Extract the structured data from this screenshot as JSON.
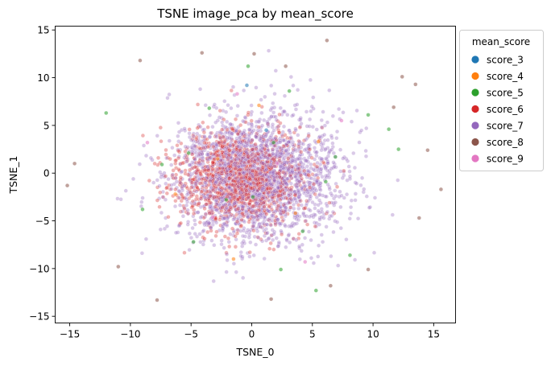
{
  "chart_data": {
    "type": "scatter",
    "title": "TSNE image_pca by mean_score",
    "xlabel": "TSNE_0",
    "ylabel": "TSNE_1",
    "xlim": [
      -16.2,
      16.8
    ],
    "ylim": [
      -15.7,
      15.4
    ],
    "xticks": [
      -15,
      -10,
      -5,
      0,
      5,
      10,
      15
    ],
    "yticks": [
      -15,
      -10,
      -5,
      0,
      5,
      10,
      15
    ],
    "grid": false,
    "legend": {
      "title": "mean_score",
      "placement": "outside-right-top",
      "entries": [
        {
          "name": "score_3",
          "color": "#1f77b4"
        },
        {
          "name": "score_4",
          "color": "#ff7f0e"
        },
        {
          "name": "score_5",
          "color": "#2ca02c"
        },
        {
          "name": "score_6",
          "color": "#d62728"
        },
        {
          "name": "score_7",
          "color": "#9467bd"
        },
        {
          "name": "score_8",
          "color": "#8c564b"
        },
        {
          "name": "score_9",
          "color": "#e377c2"
        }
      ]
    },
    "series": [
      {
        "name": "score_3",
        "color": "#1f77b4",
        "points": [
          [
            1.2,
            4.5
          ],
          [
            -0.4,
            9.2
          ]
        ]
      },
      {
        "name": "score_4",
        "color": "#ff7f0e",
        "points": [
          [
            -2.8,
            1.5
          ],
          [
            3.6,
            -4.2
          ],
          [
            0.6,
            7.1
          ],
          [
            -6.3,
            -2.2
          ],
          [
            5.5,
            3.3
          ],
          [
            -1.5,
            -9.0
          ]
        ]
      },
      {
        "name": "score_5",
        "color": "#2ca02c",
        "points": [
          [
            -12.0,
            6.3
          ],
          [
            -5.2,
            2.1
          ],
          [
            -2.1,
            -2.8
          ],
          [
            0.1,
            -2.5
          ],
          [
            1.8,
            3.2
          ],
          [
            4.2,
            -6.1
          ],
          [
            6.9,
            1.7
          ],
          [
            11.3,
            4.6
          ],
          [
            12.1,
            2.5
          ],
          [
            -9.0,
            -3.8
          ],
          [
            3.1,
            8.6
          ],
          [
            -3.5,
            6.8
          ],
          [
            8.1,
            -8.6
          ],
          [
            5.3,
            -12.3
          ],
          [
            -0.3,
            11.2
          ],
          [
            -7.4,
            0.9
          ],
          [
            9.6,
            6.1
          ],
          [
            2.4,
            -10.1
          ],
          [
            -4.8,
            -7.2
          ],
          [
            6.1,
            -0.9
          ]
        ]
      },
      {
        "name": "score_6",
        "color": "#d62728",
        "points": [],
        "seed": 17,
        "count": 1200,
        "center": [
          -1.0,
          -0.5
        ],
        "spread": [
          4.2,
          4.0
        ]
      },
      {
        "name": "score_7",
        "color": "#9467bd",
        "points": [],
        "seed": 29,
        "count": 2300,
        "center": [
          0.3,
          -0.5
        ],
        "spread": [
          5.6,
          5.3
        ]
      },
      {
        "name": "score_8",
        "color": "#8c564b",
        "points": [
          [
            -14.6,
            1.0
          ],
          [
            -9.2,
            11.8
          ],
          [
            -4.1,
            12.6
          ],
          [
            0.2,
            12.5
          ],
          [
            2.8,
            11.2
          ],
          [
            6.2,
            13.9
          ],
          [
            12.4,
            10.1
          ],
          [
            13.5,
            9.3
          ],
          [
            15.6,
            -1.7
          ],
          [
            13.8,
            -4.7
          ],
          [
            -11.0,
            -9.8
          ],
          [
            -7.8,
            -13.3
          ],
          [
            1.6,
            -13.2
          ],
          [
            6.5,
            -11.8
          ],
          [
            9.6,
            -10.1
          ],
          [
            -15.2,
            -1.3
          ],
          [
            14.5,
            2.4
          ],
          [
            11.7,
            6.9
          ]
        ]
      },
      {
        "name": "score_9",
        "color": "#e377c2",
        "points": [
          [
            -3.2,
            -4.6
          ],
          [
            2.1,
            1.0
          ],
          [
            7.4,
            5.5
          ],
          [
            -8.6,
            3.2
          ],
          [
            4.4,
            -9.3
          ],
          [
            -1.2,
            8.3
          ]
        ]
      }
    ]
  }
}
